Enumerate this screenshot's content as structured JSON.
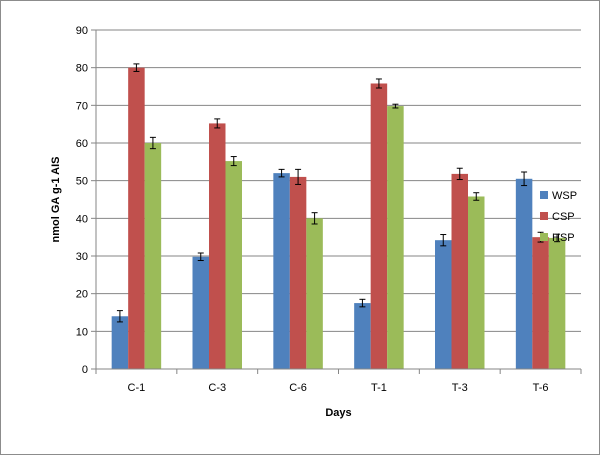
{
  "chart_data": {
    "type": "bar",
    "categories": [
      "C-1",
      "C-3",
      "C-6",
      "T-1",
      "T-3",
      "T-6"
    ],
    "series": [
      {
        "name": "WSP",
        "color": "#4f81bd",
        "values": [
          14,
          29.8,
          52,
          17.5,
          34.2,
          50.5
        ],
        "errors": [
          1.5,
          1.0,
          1.0,
          1.0,
          1.5,
          1.8
        ]
      },
      {
        "name": "CSP",
        "color": "#c0504d",
        "values": [
          80,
          65.2,
          51,
          75.8,
          51.8,
          35
        ],
        "errors": [
          1.0,
          1.2,
          2.0,
          1.2,
          1.5,
          1.3
        ]
      },
      {
        "name": "HSP",
        "color": "#9bbb59",
        "values": [
          60,
          55.2,
          40,
          69.8,
          45.8,
          34.8
        ],
        "errors": [
          1.5,
          1.2,
          1.5,
          0.5,
          1.0,
          1.0
        ]
      }
    ],
    "xlabel": "Days",
    "ylabel": "nmol GA g-1 AIS",
    "ylim": [
      0,
      90
    ],
    "yticks": [
      0,
      10,
      20,
      30,
      40,
      50,
      60,
      70,
      80,
      90
    ],
    "grid": true,
    "legend": "right"
  }
}
